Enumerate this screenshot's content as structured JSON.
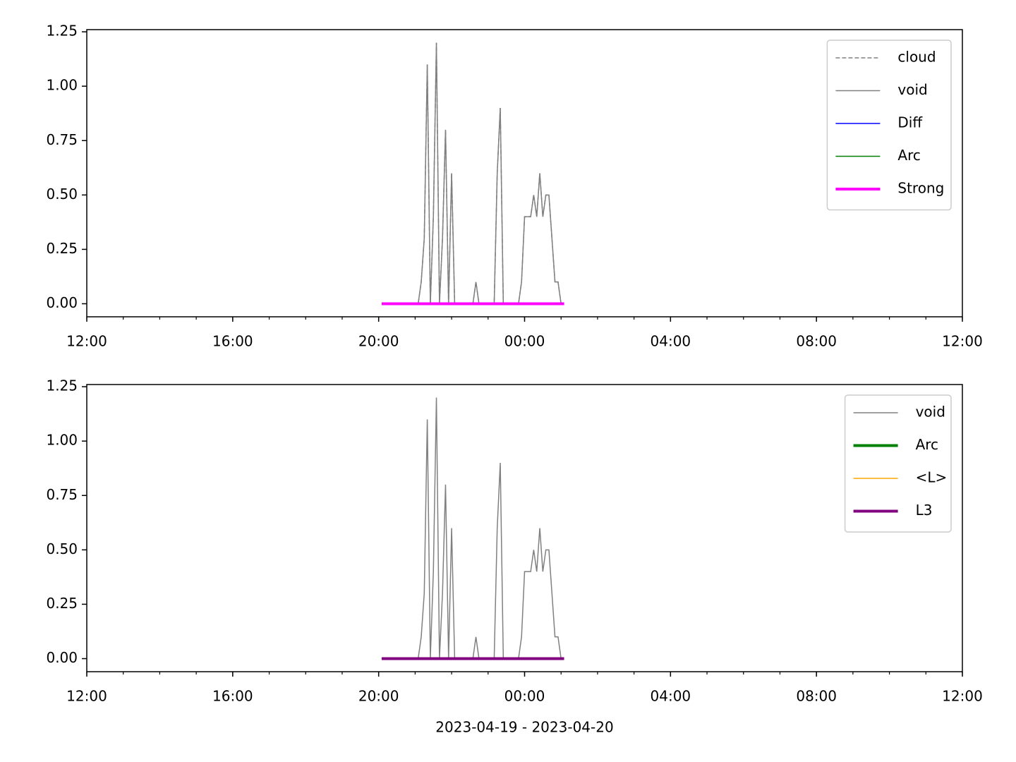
{
  "chart_data": [
    {
      "type": "line",
      "legend": "upper right",
      "x": [
        "2023-04-19T20:05",
        "2023-04-19T20:10",
        "2023-04-19T20:15",
        "2023-04-19T20:20",
        "2023-04-19T20:25",
        "2023-04-19T20:30",
        "2023-04-19T20:35",
        "2023-04-19T20:40",
        "2023-04-19T20:45",
        "2023-04-19T20:50",
        "2023-04-19T20:55",
        "2023-04-19T21:00",
        "2023-04-19T21:05",
        "2023-04-19T21:10",
        "2023-04-19T21:15",
        "2023-04-19T21:20",
        "2023-04-19T21:25",
        "2023-04-19T21:30",
        "2023-04-19T21:35",
        "2023-04-19T21:40",
        "2023-04-19T21:45",
        "2023-04-19T21:50",
        "2023-04-19T21:55",
        "2023-04-19T22:00",
        "2023-04-19T22:05",
        "2023-04-19T22:10",
        "2023-04-19T22:15",
        "2023-04-19T22:20",
        "2023-04-19T22:25",
        "2023-04-19T22:30",
        "2023-04-19T22:35",
        "2023-04-19T22:40",
        "2023-04-19T22:45",
        "2023-04-19T22:50",
        "2023-04-19T22:55",
        "2023-04-19T23:00",
        "2023-04-19T23:05",
        "2023-04-19T23:10",
        "2023-04-19T23:15",
        "2023-04-19T23:20",
        "2023-04-19T23:25",
        "2023-04-19T23:30",
        "2023-04-19T23:35",
        "2023-04-19T23:40",
        "2023-04-19T23:45",
        "2023-04-19T23:50",
        "2023-04-19T23:55",
        "2023-04-20T00:00",
        "2023-04-20T00:05",
        "2023-04-20T00:10",
        "2023-04-20T00:15",
        "2023-04-20T00:20",
        "2023-04-20T00:25",
        "2023-04-20T00:30",
        "2023-04-20T00:35",
        "2023-04-20T00:40",
        "2023-04-20T00:45",
        "2023-04-20T00:50",
        "2023-04-20T00:55",
        "2023-04-20T01:00",
        "2023-04-20T01:05"
      ],
      "series": [
        {
          "name": "cloud",
          "color": "#808080",
          "linewidth": 1.5,
          "dashed": true,
          "values": [
            0,
            0,
            0,
            0,
            0,
            0,
            0,
            0,
            0,
            0,
            0,
            0,
            0,
            0.1,
            0.3,
            1.1,
            0,
            0.4,
            1.2,
            0,
            0.3,
            0.8,
            0,
            0.6,
            0,
            0,
            0,
            0,
            0,
            0,
            0,
            0.1,
            0,
            0,
            0,
            0,
            0,
            0,
            0.6,
            0.9,
            0,
            0,
            0,
            0,
            0,
            0,
            0.1,
            0.4,
            0.4,
            0.4,
            0.5,
            0.4,
            0.6,
            0.4,
            0.5,
            0.5,
            0.3,
            0.1,
            0.1,
            0,
            0
          ]
        },
        {
          "name": "void",
          "color": "#808080",
          "linewidth": 1.5,
          "values": [
            0,
            0,
            0,
            0,
            0,
            0,
            0,
            0,
            0,
            0,
            0,
            0,
            0,
            0.1,
            0.3,
            1.1,
            0,
            0.4,
            1.2,
            0,
            0.3,
            0.8,
            0,
            0.6,
            0,
            0,
            0,
            0,
            0,
            0,
            0,
            0.1,
            0,
            0,
            0,
            0,
            0,
            0,
            0.6,
            0.9,
            0,
            0,
            0,
            0,
            0,
            0,
            0.1,
            0.4,
            0.4,
            0.4,
            0.5,
            0.4,
            0.6,
            0.4,
            0.5,
            0.5,
            0.3,
            0.1,
            0.1,
            0,
            0
          ]
        },
        {
          "name": "Diff",
          "color": "#0000ff",
          "linewidth": 1.5,
          "values": [
            0,
            0,
            0,
            0,
            0,
            0,
            0,
            0,
            0,
            0,
            0,
            0,
            0,
            0,
            0,
            0,
            0,
            0,
            0,
            0,
            0,
            0,
            0,
            0,
            0,
            0,
            0,
            0,
            0,
            0,
            0,
            0,
            0,
            0,
            0,
            0,
            0,
            0,
            0,
            0,
            0,
            0,
            0,
            0,
            0,
            0,
            0,
            0,
            0,
            0,
            0,
            0,
            0,
            0,
            0,
            0,
            0,
            0,
            0,
            0,
            0
          ]
        },
        {
          "name": "Arc",
          "color": "#008000",
          "linewidth": 1.5,
          "values": [
            0,
            0,
            0,
            0,
            0,
            0,
            0,
            0,
            0,
            0,
            0,
            0,
            0,
            0,
            0,
            0,
            0,
            0,
            0,
            0,
            0,
            0,
            0,
            0,
            0,
            0,
            0,
            0,
            0,
            0,
            0,
            0,
            0,
            0,
            0,
            0,
            0,
            0,
            0,
            0,
            0,
            0,
            0,
            0,
            0,
            0,
            0,
            0,
            0,
            0,
            0,
            0,
            0,
            0,
            0,
            0,
            0,
            0,
            0,
            0,
            0
          ]
        },
        {
          "name": "Strong",
          "color": "#ff00ff",
          "linewidth": 4,
          "values": [
            0,
            0,
            0,
            0,
            0,
            0,
            0,
            0,
            0,
            0,
            0,
            0,
            0,
            0,
            0,
            0,
            0,
            0,
            0,
            0,
            0,
            0,
            0,
            0,
            0,
            0,
            0,
            0,
            0,
            0,
            0,
            0,
            0,
            0,
            0,
            0,
            0,
            0,
            0,
            0,
            0,
            0,
            0,
            0,
            0,
            0,
            0,
            0,
            0,
            0,
            0,
            0,
            0,
            0,
            0,
            0,
            0,
            0,
            0,
            0,
            0
          ]
        }
      ],
      "xlim": [
        "2023-04-19T12:00",
        "2023-04-20T12:00"
      ],
      "xticks": [
        {
          "value": "2023-04-19T12:00",
          "label": "12:00"
        },
        {
          "value": "2023-04-19T16:00",
          "label": "16:00"
        },
        {
          "value": "2023-04-19T20:00",
          "label": "20:00"
        },
        {
          "value": "2023-04-20T00:00",
          "label": "00:00"
        },
        {
          "value": "2023-04-20T04:00",
          "label": "04:00"
        },
        {
          "value": "2023-04-20T08:00",
          "label": "08:00"
        },
        {
          "value": "2023-04-20T12:00",
          "label": "12:00"
        }
      ],
      "ylim": [
        -0.06,
        1.26
      ],
      "yticks": [
        {
          "value": 0,
          "label": "0.00"
        },
        {
          "value": 0.25,
          "label": "0.25"
        },
        {
          "value": 0.5,
          "label": "0.50"
        },
        {
          "value": 0.75,
          "label": "0.75"
        },
        {
          "value": 1,
          "label": "1.00"
        },
        {
          "value": 1.25,
          "label": "1.25"
        }
      ]
    },
    {
      "type": "line",
      "legend": "upper right",
      "xlabel": "2023-04-19 - 2023-04-20",
      "x": [
        "2023-04-19T20:05",
        "2023-04-19T20:10",
        "2023-04-19T20:15",
        "2023-04-19T20:20",
        "2023-04-19T20:25",
        "2023-04-19T20:30",
        "2023-04-19T20:35",
        "2023-04-19T20:40",
        "2023-04-19T20:45",
        "2023-04-19T20:50",
        "2023-04-19T20:55",
        "2023-04-19T21:00",
        "2023-04-19T21:05",
        "2023-04-19T21:10",
        "2023-04-19T21:15",
        "2023-04-19T21:20",
        "2023-04-19T21:25",
        "2023-04-19T21:30",
        "2023-04-19T21:35",
        "2023-04-19T21:40",
        "2023-04-19T21:45",
        "2023-04-19T21:50",
        "2023-04-19T21:55",
        "2023-04-19T22:00",
        "2023-04-19T22:05",
        "2023-04-19T22:10",
        "2023-04-19T22:15",
        "2023-04-19T22:20",
        "2023-04-19T22:25",
        "2023-04-19T22:30",
        "2023-04-19T22:35",
        "2023-04-19T22:40",
        "2023-04-19T22:45",
        "2023-04-19T22:50",
        "2023-04-19T22:55",
        "2023-04-19T23:00",
        "2023-04-19T23:05",
        "2023-04-19T23:10",
        "2023-04-19T23:15",
        "2023-04-19T23:20",
        "2023-04-19T23:25",
        "2023-04-19T23:30",
        "2023-04-19T23:35",
        "2023-04-19T23:40",
        "2023-04-19T23:45",
        "2023-04-19T23:50",
        "2023-04-19T23:55",
        "2023-04-20T00:00",
        "2023-04-20T00:05",
        "2023-04-20T00:10",
        "2023-04-20T00:15",
        "2023-04-20T00:20",
        "2023-04-20T00:25",
        "2023-04-20T00:30",
        "2023-04-20T00:35",
        "2023-04-20T00:40",
        "2023-04-20T00:45",
        "2023-04-20T00:50",
        "2023-04-20T00:55",
        "2023-04-20T01:00",
        "2023-04-20T01:05"
      ],
      "series": [
        {
          "name": "void",
          "color": "#808080",
          "linewidth": 1.5,
          "values": [
            0,
            0,
            0,
            0,
            0,
            0,
            0,
            0,
            0,
            0,
            0,
            0,
            0,
            0.1,
            0.3,
            1.1,
            0,
            0.4,
            1.2,
            0,
            0.3,
            0.8,
            0,
            0.6,
            0,
            0,
            0,
            0,
            0,
            0,
            0,
            0.1,
            0,
            0,
            0,
            0,
            0,
            0,
            0.6,
            0.9,
            0,
            0,
            0,
            0,
            0,
            0,
            0.1,
            0.4,
            0.4,
            0.4,
            0.5,
            0.4,
            0.6,
            0.4,
            0.5,
            0.5,
            0.3,
            0.1,
            0.1,
            0,
            0
          ]
        },
        {
          "name": "Arc",
          "color": "#008000",
          "linewidth": 4,
          "values": [
            0,
            0,
            0,
            0,
            0,
            0,
            0,
            0,
            0,
            0,
            0,
            0,
            0,
            0,
            0,
            0,
            0,
            0,
            0,
            0,
            0,
            0,
            0,
            0,
            0,
            0,
            0,
            0,
            0,
            0,
            0,
            0,
            0,
            0,
            0,
            0,
            0,
            0,
            0,
            0,
            0,
            0,
            0,
            0,
            0,
            0,
            0,
            0,
            0,
            0,
            0,
            0,
            0,
            0,
            0,
            0,
            0,
            0,
            0,
            0,
            0
          ]
        },
        {
          "name": "<L>",
          "color": "#ffa500",
          "linewidth": 1.5,
          "values": [
            0,
            0,
            0,
            0,
            0,
            0,
            0,
            0,
            0,
            0,
            0,
            0,
            0,
            0,
            0,
            0,
            0,
            0,
            0,
            0,
            0,
            0,
            0,
            0,
            0,
            0,
            0,
            0,
            0,
            0,
            0,
            0,
            0,
            0,
            0,
            0,
            0,
            0,
            0,
            0,
            0,
            0,
            0,
            0,
            0,
            0,
            0,
            0,
            0,
            0,
            0,
            0,
            0,
            0,
            0,
            0,
            0,
            0,
            0,
            0,
            0
          ]
        },
        {
          "name": "L3",
          "color": "#800080",
          "linewidth": 4,
          "values": [
            0,
            0,
            0,
            0,
            0,
            0,
            0,
            0,
            0,
            0,
            0,
            0,
            0,
            0,
            0,
            0,
            0,
            0,
            0,
            0,
            0,
            0,
            0,
            0,
            0,
            0,
            0,
            0,
            0,
            0,
            0,
            0,
            0,
            0,
            0,
            0,
            0,
            0,
            0,
            0,
            0,
            0,
            0,
            0,
            0,
            0,
            0,
            0,
            0,
            0,
            0,
            0,
            0,
            0,
            0,
            0,
            0,
            0,
            0,
            0,
            0
          ]
        }
      ],
      "xlim": [
        "2023-04-19T12:00",
        "2023-04-20T12:00"
      ],
      "xticks": [
        {
          "value": "2023-04-19T12:00",
          "label": "12:00"
        },
        {
          "value": "2023-04-19T16:00",
          "label": "16:00"
        },
        {
          "value": "2023-04-19T20:00",
          "label": "20:00"
        },
        {
          "value": "2023-04-20T00:00",
          "label": "00:00"
        },
        {
          "value": "2023-04-20T04:00",
          "label": "04:00"
        },
        {
          "value": "2023-04-20T08:00",
          "label": "08:00"
        },
        {
          "value": "2023-04-20T12:00",
          "label": "12:00"
        }
      ],
      "ylim": [
        -0.06,
        1.26
      ],
      "yticks": [
        {
          "value": 0,
          "label": "0.00"
        },
        {
          "value": 0.25,
          "label": "0.25"
        },
        {
          "value": 0.5,
          "label": "0.50"
        },
        {
          "value": 0.75,
          "label": "0.75"
        },
        {
          "value": 1,
          "label": "1.00"
        },
        {
          "value": 1.25,
          "label": "1.25"
        }
      ]
    }
  ]
}
